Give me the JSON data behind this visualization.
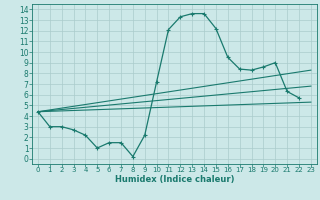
{
  "xlabel": "Humidex (Indice chaleur)",
  "bg_color": "#cce8e8",
  "grid_color": "#aacccc",
  "line_color": "#1a7a6e",
  "xlim": [
    -0.5,
    23.5
  ],
  "ylim": [
    -0.5,
    14.5
  ],
  "xticks": [
    0,
    1,
    2,
    3,
    4,
    5,
    6,
    7,
    8,
    9,
    10,
    11,
    12,
    13,
    14,
    15,
    16,
    17,
    18,
    19,
    20,
    21,
    22,
    23
  ],
  "yticks": [
    0,
    1,
    2,
    3,
    4,
    5,
    6,
    7,
    8,
    9,
    10,
    11,
    12,
    13,
    14
  ],
  "main_curve": {
    "x": [
      0,
      1,
      2,
      3,
      4,
      5,
      6,
      7,
      8,
      9,
      10,
      11,
      12,
      13,
      14,
      15,
      16,
      17,
      18,
      19,
      20,
      21,
      22
    ],
    "y": [
      4.4,
      3.0,
      3.0,
      2.7,
      2.2,
      1.0,
      1.5,
      1.5,
      0.2,
      2.2,
      7.2,
      12.1,
      13.3,
      13.6,
      13.6,
      12.2,
      9.5,
      8.4,
      8.3,
      8.6,
      9.0,
      6.3,
      5.7
    ]
  },
  "trend_lines": [
    {
      "x": [
        0,
        23
      ],
      "y": [
        4.4,
        8.3
      ]
    },
    {
      "x": [
        0,
        23
      ],
      "y": [
        4.4,
        6.8
      ]
    },
    {
      "x": [
        0,
        23
      ],
      "y": [
        4.4,
        5.3
      ]
    }
  ]
}
